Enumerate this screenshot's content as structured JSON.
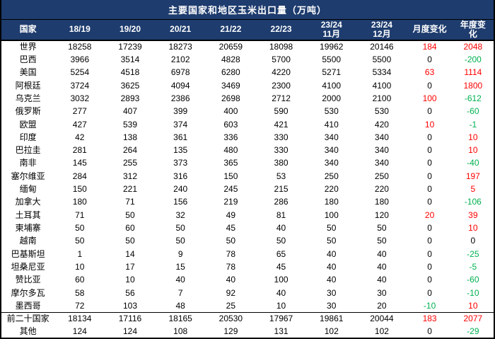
{
  "chart_data": {
    "type": "table",
    "title": "主要国家和地区玉米出口量（万吨）",
    "columns": [
      "国家",
      "18/19",
      "19/20",
      "20/21",
      "21/22",
      "22/23",
      "23/24\n11月",
      "23/24\n12月",
      "月度变化",
      "年度变化"
    ],
    "rows": [
      {
        "country": "世界",
        "values": [
          18258,
          17239,
          18273,
          20659,
          18098,
          19962,
          20146
        ],
        "monthly_change": 184,
        "yearly_change": 2048
      },
      {
        "country": "巴西",
        "values": [
          3966,
          3514,
          2102,
          4828,
          5700,
          5500,
          5500
        ],
        "monthly_change": 0,
        "yearly_change": -200
      },
      {
        "country": "美国",
        "values": [
          5254,
          4518,
          6978,
          6280,
          4220,
          5271,
          5334
        ],
        "monthly_change": 63,
        "yearly_change": 1114
      },
      {
        "country": "阿根廷",
        "values": [
          3724,
          3625,
          4094,
          3469,
          2300,
          4100,
          4100
        ],
        "monthly_change": 0,
        "yearly_change": 1800
      },
      {
        "country": "乌克兰",
        "values": [
          3032,
          2893,
          2386,
          2698,
          2712,
          2000,
          2100
        ],
        "monthly_change": 100,
        "yearly_change": -612
      },
      {
        "country": "俄罗斯",
        "values": [
          277,
          407,
          399,
          400,
          590,
          530,
          530
        ],
        "monthly_change": 0,
        "yearly_change": -60
      },
      {
        "country": "欧盟",
        "values": [
          427,
          539,
          374,
          603,
          421,
          410,
          420
        ],
        "monthly_change": 10,
        "yearly_change": -1
      },
      {
        "country": "印度",
        "values": [
          42,
          138,
          361,
          336,
          330,
          340,
          340
        ],
        "monthly_change": 0,
        "yearly_change": 10
      },
      {
        "country": "巴拉圭",
        "values": [
          281,
          264,
          135,
          480,
          330,
          340,
          340
        ],
        "monthly_change": 0,
        "yearly_change": 10
      },
      {
        "country": "南非",
        "values": [
          145,
          255,
          373,
          365,
          380,
          340,
          340
        ],
        "monthly_change": 0,
        "yearly_change": -40
      },
      {
        "country": "塞尔维亚",
        "values": [
          284,
          312,
          316,
          150,
          53,
          250,
          250
        ],
        "monthly_change": 0,
        "yearly_change": 197
      },
      {
        "country": "缅甸",
        "values": [
          150,
          221,
          240,
          245,
          215,
          220,
          220
        ],
        "monthly_change": 0,
        "yearly_change": 5
      },
      {
        "country": "加拿大",
        "values": [
          180,
          71,
          156,
          219,
          286,
          180,
          180
        ],
        "monthly_change": 0,
        "yearly_change": -106
      },
      {
        "country": "土耳其",
        "values": [
          71,
          50,
          32,
          49,
          81,
          100,
          120
        ],
        "monthly_change": 20,
        "yearly_change": 39
      },
      {
        "country": "柬埔寨",
        "values": [
          50,
          60,
          50,
          45,
          40,
          50,
          50
        ],
        "monthly_change": 0,
        "yearly_change": 10
      },
      {
        "country": "越南",
        "values": [
          50,
          50,
          50,
          50,
          50,
          50,
          50
        ],
        "monthly_change": 0,
        "yearly_change": 0
      },
      {
        "country": "巴基斯坦",
        "values": [
          1,
          14,
          9,
          78,
          65,
          40,
          40
        ],
        "monthly_change": 0,
        "yearly_change": -25
      },
      {
        "country": "坦桑尼亚",
        "values": [
          10,
          17,
          15,
          78,
          45,
          40,
          40
        ],
        "monthly_change": 0,
        "yearly_change": -5
      },
      {
        "country": "赞比亚",
        "values": [
          60,
          10,
          40,
          40,
          100,
          40,
          40
        ],
        "monthly_change": 0,
        "yearly_change": -60
      },
      {
        "country": "摩尔多瓦",
        "values": [
          58,
          56,
          7,
          92,
          40,
          30,
          30
        ],
        "monthly_change": 0,
        "yearly_change": -10
      },
      {
        "country": "墨西哥",
        "values": [
          72,
          103,
          48,
          25,
          10,
          30,
          20
        ],
        "monthly_change": -10,
        "yearly_change": 10
      },
      {
        "country": "前二十国家",
        "values": [
          18134,
          17116,
          18165,
          20530,
          17967,
          19861,
          20044
        ],
        "monthly_change": 183,
        "yearly_change": 2077
      },
      {
        "country": "其他",
        "values": [
          124,
          124,
          108,
          129,
          131,
          102,
          102
        ],
        "monthly_change": 0,
        "yearly_change": -29
      }
    ],
    "separator_row_index": 21,
    "layout": {
      "grid": "no inner gridlines; black rules under title, under header, above summary row and around outer edge"
    }
  },
  "colors": {
    "header_bg": "#1e3c6e",
    "header_text": "#ffffff",
    "positive_change": "#ff0000",
    "negative_change": "#00b050",
    "zero_change": "#000000",
    "body_text": "#000000",
    "border": "#000000"
  }
}
